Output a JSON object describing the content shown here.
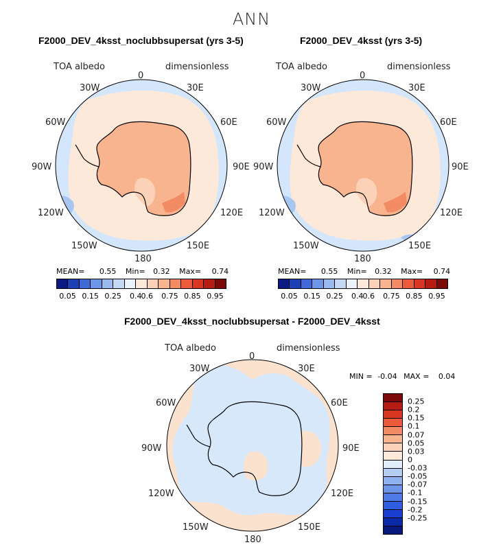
{
  "figure": {
    "supertitle": "ANN"
  },
  "panels": [
    {
      "title": "F2000_DEV_4ksst_noclubbsupersat (yrs 3-5)",
      "variable": "TOA albedo",
      "units": "dimensionless",
      "stats": {
        "mean_label": "MEAN=",
        "mean": "0.55",
        "min_label": "Min=",
        "min": "0.32",
        "max_label": "Max=",
        "max": "0.74"
      }
    },
    {
      "title": "F2000_DEV_4ksst (yrs 3-5)",
      "variable": "TOA albedo",
      "units": "dimensionless",
      "stats": {
        "mean_label": "MEAN=",
        "mean": "0.55",
        "min_label": "Min=",
        "min": "0.32",
        "max_label": "Max=",
        "max": "0.74"
      }
    },
    {
      "title": "F2000_DEV_4ksst_noclubbsupersat - F2000_DEV_4ksst",
      "variable": "TOA albedo",
      "units": "dimensionless",
      "stats": {
        "min_label": "MIN =",
        "min": "-0.04",
        "max_label": "MAX =",
        "max": "0.04"
      }
    }
  ],
  "longitude_labels": {
    "lon_0": "0",
    "lon_30e": "30E",
    "lon_60e": "60E",
    "lon_90e": "90E",
    "lon_120e": "120E",
    "lon_150e": "150E",
    "lon_180": "180",
    "lon_150w": "150W",
    "lon_120w": "120W",
    "lon_90w": "90W",
    "lon_60w": "60W",
    "lon_30w": "30W"
  },
  "colorbar_main": {
    "colors": [
      "#0a1a82",
      "#1d40b4",
      "#3f6ad8",
      "#6d95e8",
      "#99b9ef",
      "#c5d9f5",
      "#eaf3fc",
      "#fde9da",
      "#fbd2b7",
      "#f8b48f",
      "#f38b64",
      "#ec5b3c",
      "#d93722",
      "#b51d12",
      "#7c0a08"
    ],
    "ticks": [
      "0.05",
      "0.15",
      "0.25",
      "0.4",
      "0.6",
      "0.75",
      "0.85",
      "0.95"
    ]
  },
  "colorbar_diff": {
    "colors": [
      "#7c0a08",
      "#b51d12",
      "#d93722",
      "#ec5b3c",
      "#f38b64",
      "#f8b48f",
      "#fbd2b7",
      "#fde9da",
      "#e2eefb",
      "#b4cdf3",
      "#8fb1ef",
      "#6d95e8",
      "#4c7ae6",
      "#2f5ee0",
      "#1a3fd0",
      "#0a2aa8",
      "#06197a"
    ],
    "ticks": [
      "0.25",
      "0.2",
      "0.15",
      "0.1",
      "0.07",
      "0.05",
      "0.03",
      "0",
      "-0.03",
      "-0.05",
      "-0.07",
      "-0.1",
      "-0.15",
      "-0.2",
      "-0.25"
    ]
  },
  "map_colors": {
    "ocean_low": "#d4e6fb",
    "ocean_band": "#fde9da",
    "ice_interior": "#f8b48f",
    "ice_margin": "#f38b64",
    "ice_shelf": "#fbd2b7",
    "dark_blue_patch": "#a9c6f1",
    "diff_pos": "#fbe2cf",
    "diff_neg": "#d8e8fb"
  }
}
